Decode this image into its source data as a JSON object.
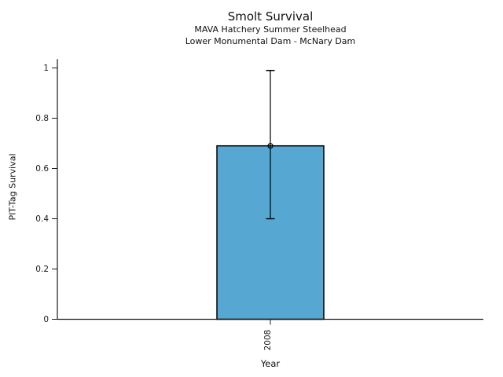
{
  "page": {
    "background": "#ffffff"
  },
  "chart_data": {
    "type": "bar",
    "title": "Smolt Survival",
    "subtitles": [
      "MAVA Hatchery Summer Steelhead",
      "Lower Monumental Dam - McNary Dam"
    ],
    "xlabel": "Year",
    "ylabel": "PIT-Tag Survival",
    "categories": [
      "2008"
    ],
    "values": [
      0.69
    ],
    "error_low": [
      0.4
    ],
    "error_high": [
      0.99
    ],
    "yticks": [
      0,
      0.2,
      0.4,
      0.6,
      0.8,
      1
    ],
    "ytick_labels": [
      "0",
      "0.2",
      "0.4",
      "0.6",
      "0.8",
      "1"
    ],
    "ylim": [
      0,
      1.035
    ],
    "grid": false,
    "legend": false,
    "marker": "open-circle",
    "bar_color": "#56A8D2",
    "bar_edge_color": "#000000",
    "error_color": "#000000",
    "axis_color": "#1a1a1a"
  }
}
